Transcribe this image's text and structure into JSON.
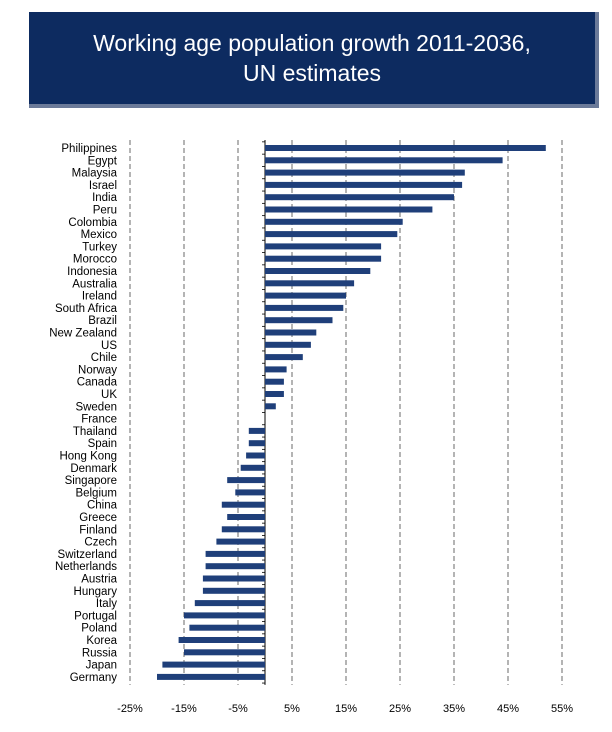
{
  "chart_data": {
    "type": "bar",
    "orientation": "horizontal",
    "title_lines": [
      "Working age population growth 2011-2036,",
      "UN estimates"
    ],
    "categories": [
      "Philippines",
      "Egypt",
      "Malaysia",
      "Israel",
      "India",
      "Peru",
      "Colombia",
      "Mexico",
      "Turkey",
      "Morocco",
      "Indonesia",
      "Australia",
      "Ireland",
      "South Africa",
      "Brazil",
      "New Zealand",
      "US",
      "Chile",
      "Norway",
      "Canada",
      "UK",
      "Sweden",
      "France",
      "Thailand",
      "Spain",
      "Hong Kong",
      "Denmark",
      "Singapore",
      "Belgium",
      "China",
      "Greece",
      "Finland",
      "Czech",
      "Switzerland",
      "Netherlands",
      "Austria",
      "Hungary",
      "Italy",
      "Portugal",
      "Poland",
      "Korea",
      "Russia",
      "Japan",
      "Germany"
    ],
    "values": [
      52,
      44,
      37,
      36.5,
      35,
      31,
      25.5,
      24.5,
      21.5,
      21.5,
      19.5,
      16.5,
      15,
      14.5,
      12.5,
      9.5,
      8.5,
      7,
      4,
      3.5,
      3.5,
      2,
      0,
      -3,
      -3,
      -3.5,
      -4.5,
      -7,
      -5.5,
      -8,
      -7,
      -8,
      -9,
      -11,
      -11,
      -11.5,
      -11.5,
      -13,
      -15,
      -14,
      -16,
      -15,
      -19,
      -20
    ],
    "xlim": [
      -25,
      55
    ],
    "x_ticks": [
      -25,
      -15,
      -5,
      5,
      15,
      25,
      35,
      45,
      55
    ],
    "x_tick_labels": [
      "-25%",
      "-15%",
      "-5%",
      "5%",
      "15%",
      "25%",
      "35%",
      "45%",
      "55%"
    ],
    "bar_color": "#1f3f7a",
    "gridline_style": "dashed vertical"
  },
  "colors": {
    "title_bg": "#0d2b60",
    "title_text": "#ffffff",
    "bar": "#1f3f7a"
  }
}
